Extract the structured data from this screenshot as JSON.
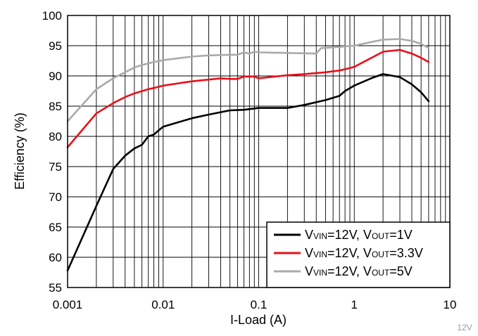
{
  "chart_data": {
    "type": "line",
    "xlabel": "I-Load (A)",
    "ylabel": "Efficiency (%)",
    "xscale": "log",
    "xlim": [
      0.001,
      10
    ],
    "ylim": [
      55,
      100
    ],
    "grid": true,
    "legend_position": "bottom-right",
    "x_ticks": [
      {
        "value": 0.001,
        "label": "0.001"
      },
      {
        "value": 0.01,
        "label": "0.01"
      },
      {
        "value": 0.1,
        "label": "0.1"
      },
      {
        "value": 1,
        "label": "1"
      },
      {
        "value": 10,
        "label": "10"
      }
    ],
    "y_ticks": [
      {
        "value": 55,
        "label": "55"
      },
      {
        "value": 60,
        "label": "60"
      },
      {
        "value": 65,
        "label": "65"
      },
      {
        "value": 70,
        "label": "70"
      },
      {
        "value": 75,
        "label": "75"
      },
      {
        "value": 80,
        "label": "80"
      },
      {
        "value": 85,
        "label": "85"
      },
      {
        "value": 90,
        "label": "90"
      },
      {
        "value": 95,
        "label": "95"
      },
      {
        "value": 100,
        "label": "100"
      }
    ],
    "series": [
      {
        "color": "#000000",
        "legend_parts": [
          "V",
          "VIN",
          "=12V, V",
          "OUT",
          "=1V"
        ],
        "points": [
          [
            0.001,
            57.8
          ],
          [
            0.002,
            68.5
          ],
          [
            0.003,
            74.6
          ],
          [
            0.004,
            76.8
          ],
          [
            0.005,
            78.0
          ],
          [
            0.006,
            78.6
          ],
          [
            0.007,
            80.0
          ],
          [
            0.008,
            80.3
          ],
          [
            0.009,
            81.0
          ],
          [
            0.01,
            81.6
          ],
          [
            0.02,
            83.0
          ],
          [
            0.03,
            83.6
          ],
          [
            0.04,
            84.0
          ],
          [
            0.05,
            84.3
          ],
          [
            0.07,
            84.4
          ],
          [
            0.1,
            84.7
          ],
          [
            0.2,
            84.7
          ],
          [
            0.3,
            85.2
          ],
          [
            0.5,
            86.0
          ],
          [
            0.7,
            86.7
          ],
          [
            0.8,
            87.5
          ],
          [
            1.0,
            88.4
          ],
          [
            1.5,
            89.6
          ],
          [
            2.0,
            90.3
          ],
          [
            3.0,
            89.8
          ],
          [
            4.0,
            88.6
          ],
          [
            5.0,
            87.3
          ],
          [
            6.0,
            85.8
          ]
        ]
      },
      {
        "color": "#e8101a",
        "legend_parts": [
          "V",
          "VIN",
          "=12V, V",
          "OUT",
          "=3.3V"
        ],
        "points": [
          [
            0.001,
            78.2
          ],
          [
            0.002,
            83.8
          ],
          [
            0.003,
            85.5
          ],
          [
            0.004,
            86.5
          ],
          [
            0.005,
            87.1
          ],
          [
            0.007,
            87.8
          ],
          [
            0.008,
            88.0
          ],
          [
            0.01,
            88.4
          ],
          [
            0.02,
            89.1
          ],
          [
            0.04,
            89.6
          ],
          [
            0.05,
            89.5
          ],
          [
            0.06,
            89.5
          ],
          [
            0.07,
            89.9
          ],
          [
            0.09,
            89.9
          ],
          [
            0.1,
            89.6
          ],
          [
            0.2,
            90.1
          ],
          [
            0.3,
            90.3
          ],
          [
            0.5,
            90.6
          ],
          [
            0.7,
            90.9
          ],
          [
            0.8,
            91.1
          ],
          [
            1.0,
            91.5
          ],
          [
            2.0,
            94.0
          ],
          [
            3.0,
            94.3
          ],
          [
            4.0,
            93.7
          ],
          [
            5.0,
            93.0
          ],
          [
            6.0,
            92.3
          ]
        ]
      },
      {
        "color": "#aaaaaa",
        "legend_parts": [
          "V",
          "VIN",
          "=12V, V",
          "OUT",
          "=5V"
        ],
        "points": [
          [
            0.001,
            82.5
          ],
          [
            0.002,
            87.8
          ],
          [
            0.003,
            89.6
          ],
          [
            0.004,
            90.6
          ],
          [
            0.005,
            91.4
          ],
          [
            0.006,
            91.8
          ],
          [
            0.008,
            92.3
          ],
          [
            0.01,
            92.6
          ],
          [
            0.02,
            93.2
          ],
          [
            0.03,
            93.4
          ],
          [
            0.05,
            93.5
          ],
          [
            0.06,
            93.5
          ],
          [
            0.07,
            93.9
          ],
          [
            0.08,
            93.7
          ],
          [
            0.09,
            94.0
          ],
          [
            0.1,
            93.9
          ],
          [
            0.2,
            93.8
          ],
          [
            0.4,
            93.7
          ],
          [
            0.45,
            94.6
          ],
          [
            0.7,
            94.8
          ],
          [
            1.0,
            95.0
          ],
          [
            1.5,
            95.6
          ],
          [
            2.0,
            96.0
          ],
          [
            3.0,
            96.1
          ],
          [
            4.0,
            95.8
          ],
          [
            5.0,
            95.3
          ],
          [
            6.0,
            94.6
          ]
        ]
      }
    ]
  },
  "figure_id": "12V"
}
